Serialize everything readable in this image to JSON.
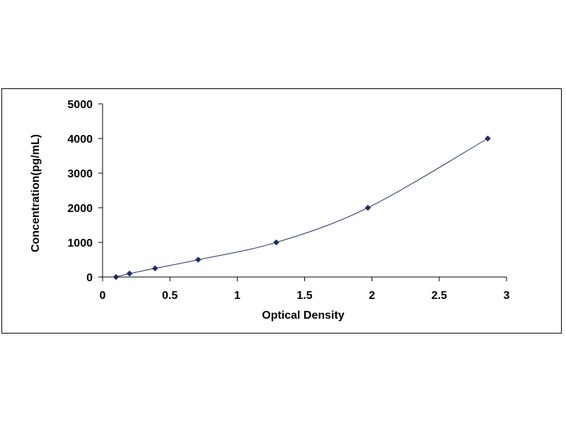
{
  "chart_data": {
    "type": "scatter",
    "title": "",
    "xlabel": "Optical Density",
    "ylabel": "Concentration(pg/mL)",
    "xlim": [
      0,
      3
    ],
    "ylim": [
      0,
      5000
    ],
    "x_ticks": [
      0,
      0.5,
      1,
      1.5,
      2,
      2.5,
      3
    ],
    "x_tick_labels": [
      "0",
      "0.5",
      "1",
      "1.5",
      "2",
      "2.5",
      "3"
    ],
    "y_ticks": [
      0,
      1000,
      2000,
      3000,
      4000,
      5000
    ],
    "y_tick_labels": [
      "0",
      "1000",
      "2000",
      "3000",
      "4000",
      "5000"
    ],
    "grid": false,
    "legend": "none",
    "series": [
      {
        "marker": "diamond",
        "trendline": "smooth",
        "points": [
          {
            "x": 0.1,
            "y": 0
          },
          {
            "x": 0.2,
            "y": 100
          },
          {
            "x": 0.39,
            "y": 250
          },
          {
            "x": 0.71,
            "y": 500
          },
          {
            "x": 1.29,
            "y": 1000
          },
          {
            "x": 1.97,
            "y": 2000
          },
          {
            "x": 2.86,
            "y": 4000
          }
        ]
      }
    ],
    "colors": {
      "marker": "#1f2d6b",
      "line": "#1f2d6b",
      "axis": "#000000"
    }
  }
}
